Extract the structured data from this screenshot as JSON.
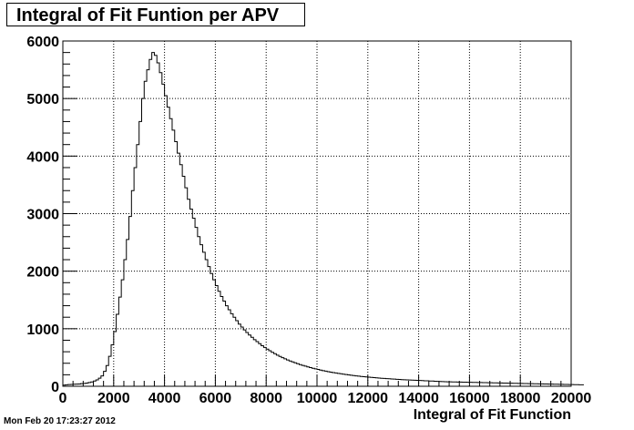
{
  "title": "Integral of Fit Funtion per APV",
  "timestamp": "Mon Feb 20 17:23:27 2012",
  "chart_data": {
    "type": "histogram",
    "title": "Integral of Fit Funtion per APV",
    "xlabel": "Integral of Fit Function",
    "ylabel": "",
    "xlim": [
      0,
      20000
    ],
    "ylim": [
      0,
      6000
    ],
    "grid": true,
    "bin_width": 100,
    "x_ticks": [
      0,
      2000,
      4000,
      6000,
      8000,
      10000,
      12000,
      14000,
      16000,
      18000,
      20000
    ],
    "y_ticks": [
      0,
      1000,
      2000,
      3000,
      4000,
      5000,
      6000
    ],
    "x_tick_labels": [
      "0",
      "2000",
      "4000",
      "6000",
      "8000",
      "10000",
      "12000",
      "14000",
      "16000",
      "18000",
      "20000"
    ],
    "y_tick_labels": [
      "0",
      "1000",
      "2000",
      "3000",
      "4000",
      "5000",
      "6000"
    ],
    "bin_edges_start": 0,
    "values": [
      20,
      25,
      30,
      32,
      35,
      38,
      40,
      45,
      50,
      55,
      65,
      75,
      90,
      110,
      140,
      180,
      260,
      360,
      520,
      720,
      950,
      1250,
      1550,
      1850,
      2200,
      2550,
      2950,
      3400,
      3800,
      4200,
      4600,
      5000,
      5300,
      5500,
      5680,
      5800,
      5750,
      5620,
      5450,
      5250,
      5050,
      4850,
      4650,
      4450,
      4250,
      4050,
      3850,
      3650,
      3450,
      3250,
      3080,
      2920,
      2760,
      2600,
      2460,
      2330,
      2200,
      2080,
      1960,
      1850,
      1750,
      1650,
      1560,
      1480,
      1400,
      1330,
      1260,
      1200,
      1140,
      1080,
      1030,
      980,
      935,
      890,
      850,
      810,
      775,
      740,
      705,
      675,
      645,
      617,
      590,
      565,
      540,
      518,
      497,
      477,
      458,
      440,
      423,
      407,
      392,
      377,
      363,
      350,
      337,
      325,
      313,
      302,
      292,
      282,
      272,
      263,
      254,
      246,
      238,
      231,
      224,
      217,
      210,
      204,
      198,
      192,
      186,
      181,
      176,
      171,
      166,
      162,
      158,
      154,
      150,
      146,
      142,
      139,
      136,
      133,
      130,
      127,
      124,
      121,
      118,
      115,
      112,
      110,
      108,
      106,
      104,
      102,
      100,
      98,
      96,
      94,
      92,
      90,
      88,
      86,
      84,
      82,
      80,
      78,
      77,
      76,
      75,
      74,
      73,
      72,
      71,
      70,
      69,
      68,
      67,
      66,
      65,
      64,
      63,
      62,
      61,
      60,
      59,
      58,
      57,
      56,
      55,
      54,
      53,
      52,
      51,
      50,
      49,
      48,
      47,
      46,
      45,
      44,
      43,
      42,
      41,
      40,
      39,
      38,
      37,
      36,
      35,
      34,
      33,
      32,
      31,
      30,
      29,
      28,
      27,
      26,
      25
    ]
  }
}
